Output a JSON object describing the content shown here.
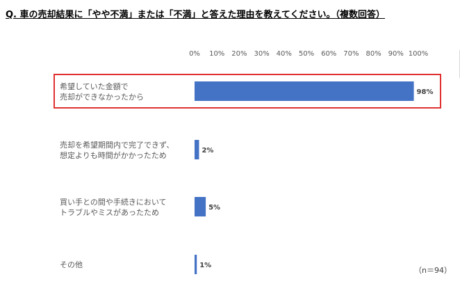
{
  "question": "Q. 車の売却結果に「やや不満」または「不満」と答えた理由を教えてください。（複数回答）",
  "note": "（n＝94）",
  "colors": {
    "bar": "#4472c4",
    "highlight_border": "#e03030",
    "text": "#595959"
  },
  "chart_data": {
    "type": "bar",
    "orientation": "horizontal",
    "title": "",
    "xlabel": "",
    "ylabel": "",
    "xlim": [
      0,
      100
    ],
    "ticks": [
      "0%",
      "10%",
      "20%",
      "30%",
      "40%",
      "50%",
      "60%",
      "70%",
      "80%",
      "90%",
      "100%"
    ],
    "categories": [
      [
        "希望していた金額で",
        "売却ができなかったから"
      ],
      [
        "売却を希望期間内で完了できず、",
        "想定よりも時間がかかったため"
      ],
      [
        "買い手との間や手続きにおいて",
        "トラブルやミスがあったため"
      ],
      [
        "その他"
      ]
    ],
    "values": [
      98,
      2,
      5,
      1
    ],
    "data_labels": [
      "98%",
      "2%",
      "5%",
      "1%"
    ],
    "highlighted_category": 0,
    "grid": false
  }
}
